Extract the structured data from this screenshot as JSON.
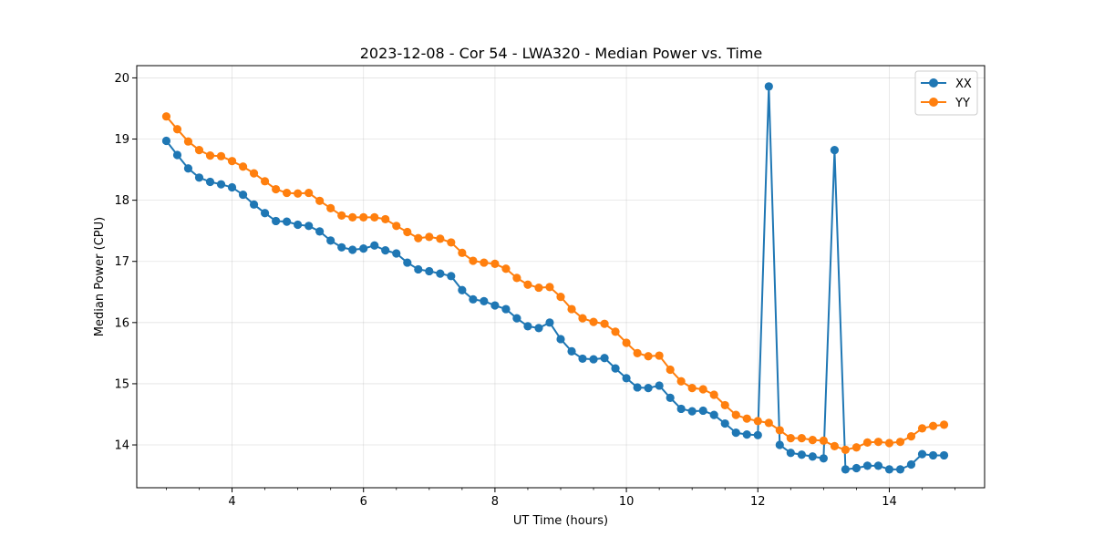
{
  "chart_data": {
    "type": "line",
    "title": "2023-12-08 - Cor 54 - LWA320 - Median Power vs. Time",
    "xlabel": "UT Time (hours)",
    "ylabel": "Median Power (CPU)",
    "xlim": [
      2.55,
      15.45
    ],
    "ylim": [
      13.3,
      20.2
    ],
    "xticks": [
      4,
      6,
      8,
      10,
      12,
      14
    ],
    "yticks": [
      14,
      15,
      16,
      17,
      18,
      19,
      20
    ],
    "grid": true,
    "legend_position": "top-right",
    "x": [
      3.0,
      3.167,
      3.333,
      3.5,
      3.667,
      3.833,
      4.0,
      4.167,
      4.333,
      4.5,
      4.667,
      4.833,
      5.0,
      5.167,
      5.333,
      5.5,
      5.667,
      5.833,
      6.0,
      6.167,
      6.333,
      6.5,
      6.667,
      6.833,
      7.0,
      7.167,
      7.333,
      7.5,
      7.667,
      7.833,
      8.0,
      8.167,
      8.333,
      8.5,
      8.667,
      8.833,
      9.0,
      9.167,
      9.333,
      9.5,
      9.667,
      9.833,
      10.0,
      10.167,
      10.333,
      10.5,
      10.667,
      10.833,
      11.0,
      11.167,
      11.333,
      11.5,
      11.667,
      11.833,
      12.0,
      12.167,
      12.333,
      12.5,
      12.667,
      12.833,
      13.0,
      13.167,
      13.333,
      13.5,
      13.667,
      13.833,
      14.0,
      14.167,
      14.333,
      14.5,
      14.667,
      14.833
    ],
    "series": [
      {
        "name": "XX",
        "color": "#1f77b4",
        "values": [
          18.97,
          18.74,
          18.52,
          18.37,
          18.3,
          18.26,
          18.21,
          18.09,
          17.93,
          17.79,
          17.66,
          17.65,
          17.6,
          17.58,
          17.49,
          17.34,
          17.23,
          17.19,
          17.21,
          17.26,
          17.18,
          17.13,
          16.98,
          16.87,
          16.84,
          16.8,
          16.76,
          16.53,
          16.38,
          16.35,
          16.28,
          16.22,
          16.07,
          15.94,
          15.91,
          16.0,
          15.73,
          15.53,
          15.41,
          15.4,
          15.42,
          15.25,
          15.09,
          14.94,
          14.93,
          14.97,
          14.77,
          14.59,
          14.55,
          14.56,
          14.49,
          14.35,
          14.2,
          14.17,
          14.16,
          19.86,
          14.0,
          13.87,
          13.84,
          13.81,
          13.78,
          18.82,
          13.6,
          13.62,
          13.66,
          13.66,
          13.6,
          13.6,
          13.68,
          13.85,
          13.83,
          13.83
        ]
      },
      {
        "name": "YY",
        "color": "#ff7f0e",
        "values": [
          19.37,
          19.16,
          18.96,
          18.82,
          18.73,
          18.72,
          18.64,
          18.55,
          18.44,
          18.31,
          18.18,
          18.12,
          18.11,
          18.12,
          17.99,
          17.87,
          17.75,
          17.72,
          17.72,
          17.72,
          17.69,
          17.58,
          17.48,
          17.38,
          17.4,
          17.37,
          17.31,
          17.14,
          17.01,
          16.98,
          16.96,
          16.88,
          16.73,
          16.62,
          16.57,
          16.58,
          16.42,
          16.22,
          16.07,
          16.01,
          15.98,
          15.85,
          15.67,
          15.5,
          15.45,
          15.46,
          15.23,
          15.04,
          14.93,
          14.91,
          14.82,
          14.65,
          14.49,
          14.43,
          14.39,
          14.36,
          14.24,
          14.11,
          14.11,
          14.08,
          14.07,
          13.98,
          13.92,
          13.96,
          14.04,
          14.05,
          14.03,
          14.05,
          14.14,
          14.27,
          14.31,
          14.33
        ]
      }
    ]
  }
}
